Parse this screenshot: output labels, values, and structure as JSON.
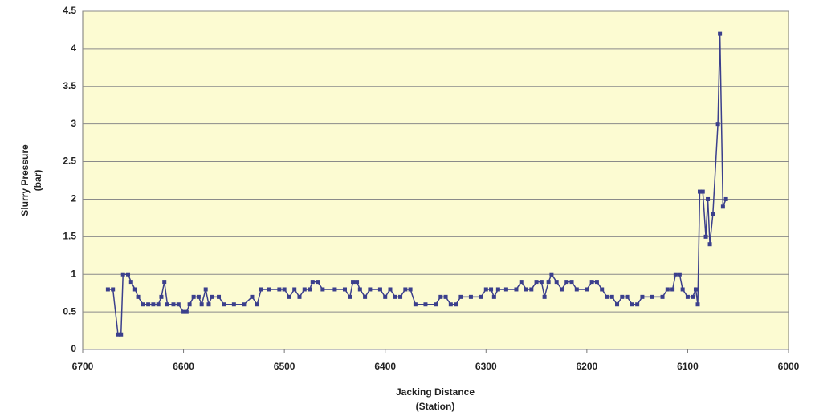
{
  "chart_data": {
    "type": "line",
    "ylabel": [
      "Slurry Pressure",
      "(bar)"
    ],
    "xlabel": [
      "Jacking Distance",
      "(Station)"
    ],
    "xlim": [
      6700,
      6000
    ],
    "xticks": [
      6700,
      6600,
      6500,
      6400,
      6300,
      6200,
      6100,
      6000
    ],
    "ylim": [
      0,
      4.5
    ],
    "yticks": [
      0,
      0.5,
      1,
      1.5,
      2,
      2.5,
      3,
      3.5,
      4,
      4.5
    ],
    "grid": true,
    "background": "#fcfbd2",
    "series": [
      {
        "name": "Slurry Pressure",
        "color": "#3b3f8c",
        "x": [
          6675,
          6670,
          6665,
          6662,
          6660,
          6655,
          6652,
          6648,
          6645,
          6640,
          6635,
          6630,
          6625,
          6622,
          6619,
          6616,
          6610,
          6605,
          6600,
          6597,
          6594,
          6590,
          6585,
          6582,
          6578,
          6575,
          6572,
          6565,
          6560,
          6550,
          6540,
          6532,
          6527,
          6523,
          6515,
          6505,
          6500,
          6495,
          6490,
          6485,
          6480,
          6475,
          6472,
          6467,
          6462,
          6450,
          6440,
          6435,
          6432,
          6428,
          6425,
          6420,
          6415,
          6405,
          6400,
          6395,
          6390,
          6385,
          6380,
          6375,
          6370,
          6360,
          6350,
          6345,
          6340,
          6335,
          6330,
          6325,
          6315,
          6305,
          6300,
          6295,
          6292,
          6288,
          6280,
          6270,
          6265,
          6260,
          6255,
          6250,
          6245,
          6242,
          6238,
          6235,
          6230,
          6225,
          6220,
          6215,
          6210,
          6200,
          6195,
          6190,
          6185,
          6180,
          6175,
          6170,
          6165,
          6160,
          6155,
          6150,
          6145,
          6135,
          6125,
          6120,
          6115,
          6112,
          6108,
          6105,
          6100,
          6095,
          6092,
          6090,
          6088,
          6085,
          6082,
          6080,
          6078,
          6075,
          6070,
          6068,
          6065,
          6062
        ],
        "values": [
          0.8,
          0.8,
          0.2,
          0.2,
          1.0,
          1.0,
          0.9,
          0.8,
          0.7,
          0.6,
          0.6,
          0.6,
          0.6,
          0.7,
          0.9,
          0.6,
          0.6,
          0.6,
          0.5,
          0.5,
          0.6,
          0.7,
          0.7,
          0.6,
          0.8,
          0.6,
          0.7,
          0.7,
          0.6,
          0.6,
          0.6,
          0.7,
          0.6,
          0.8,
          0.8,
          0.8,
          0.8,
          0.7,
          0.8,
          0.7,
          0.8,
          0.8,
          0.9,
          0.9,
          0.8,
          0.8,
          0.8,
          0.7,
          0.9,
          0.9,
          0.8,
          0.7,
          0.8,
          0.8,
          0.7,
          0.8,
          0.7,
          0.7,
          0.8,
          0.8,
          0.6,
          0.6,
          0.6,
          0.7,
          0.7,
          0.6,
          0.6,
          0.7,
          0.7,
          0.7,
          0.8,
          0.8,
          0.7,
          0.8,
          0.8,
          0.8,
          0.9,
          0.8,
          0.8,
          0.9,
          0.9,
          0.7,
          0.9,
          1.0,
          0.9,
          0.8,
          0.9,
          0.9,
          0.8,
          0.8,
          0.9,
          0.9,
          0.8,
          0.7,
          0.7,
          0.6,
          0.7,
          0.7,
          0.6,
          0.6,
          0.7,
          0.7,
          0.7,
          0.8,
          0.8,
          1.0,
          1.0,
          0.8,
          0.7,
          0.7,
          0.8,
          0.6,
          2.1,
          2.1,
          1.5,
          2.0,
          1.4,
          1.8,
          3.0,
          4.2,
          1.9,
          2.0
        ]
      }
    ]
  }
}
